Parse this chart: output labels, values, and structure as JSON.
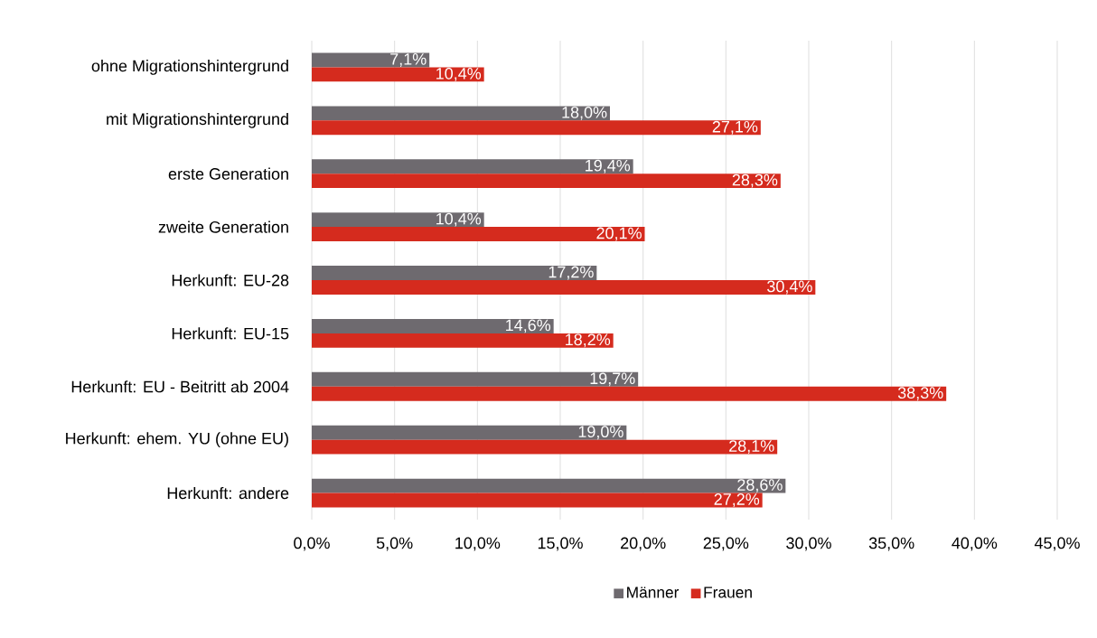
{
  "chart_data": {
    "type": "bar",
    "orientation": "horizontal",
    "categories": [
      "ohne Migrationshintergrund",
      "mit Migrationshintergrund",
      "erste  Generation",
      "zweite Generation",
      "Herkunft: EU-28",
      "Herkunft: EU-15",
      "Herkunft: EU - Beitritt ab 2004",
      "Herkunft: ehem. YU (ohne EU)",
      "Herkunft: andere"
    ],
    "series": [
      {
        "name": "Männer",
        "color": "#6e6a6f",
        "values": [
          7.1,
          18.0,
          19.4,
          10.4,
          17.2,
          14.6,
          19.7,
          19.0,
          28.6
        ],
        "value_labels": [
          "7,1%",
          "18,0%",
          "19,4%",
          "10,4%",
          "17,2%",
          "14,6%",
          "19,7%",
          "19,0%",
          "28,6%"
        ]
      },
      {
        "name": "Frauen",
        "color": "#d52b1e",
        "values": [
          10.4,
          27.1,
          28.3,
          20.1,
          30.4,
          18.2,
          38.3,
          28.1,
          27.2
        ],
        "value_labels": [
          "10,4%",
          "27,1%",
          "28,3%",
          "20,1%",
          "30,4%",
          "18,2%",
          "38,3%",
          "28,1%",
          "27,2%"
        ]
      }
    ],
    "xlim": [
      0,
      45
    ],
    "xticks": [
      {
        "value": 0,
        "label": "0,0%"
      },
      {
        "value": 5,
        "label": "5,0%"
      },
      {
        "value": 10,
        "label": "10,0%"
      },
      {
        "value": 15,
        "label": "15,0%"
      },
      {
        "value": 20,
        "label": "20,0%"
      },
      {
        "value": 25,
        "label": "25,0%"
      },
      {
        "value": 30,
        "label": "30,0%"
      },
      {
        "value": 35,
        "label": "35,0%"
      },
      {
        "value": 40,
        "label": "40,0%"
      },
      {
        "value": 45,
        "label": "45,0%"
      }
    ],
    "grid": "x",
    "legend": "bottom"
  }
}
